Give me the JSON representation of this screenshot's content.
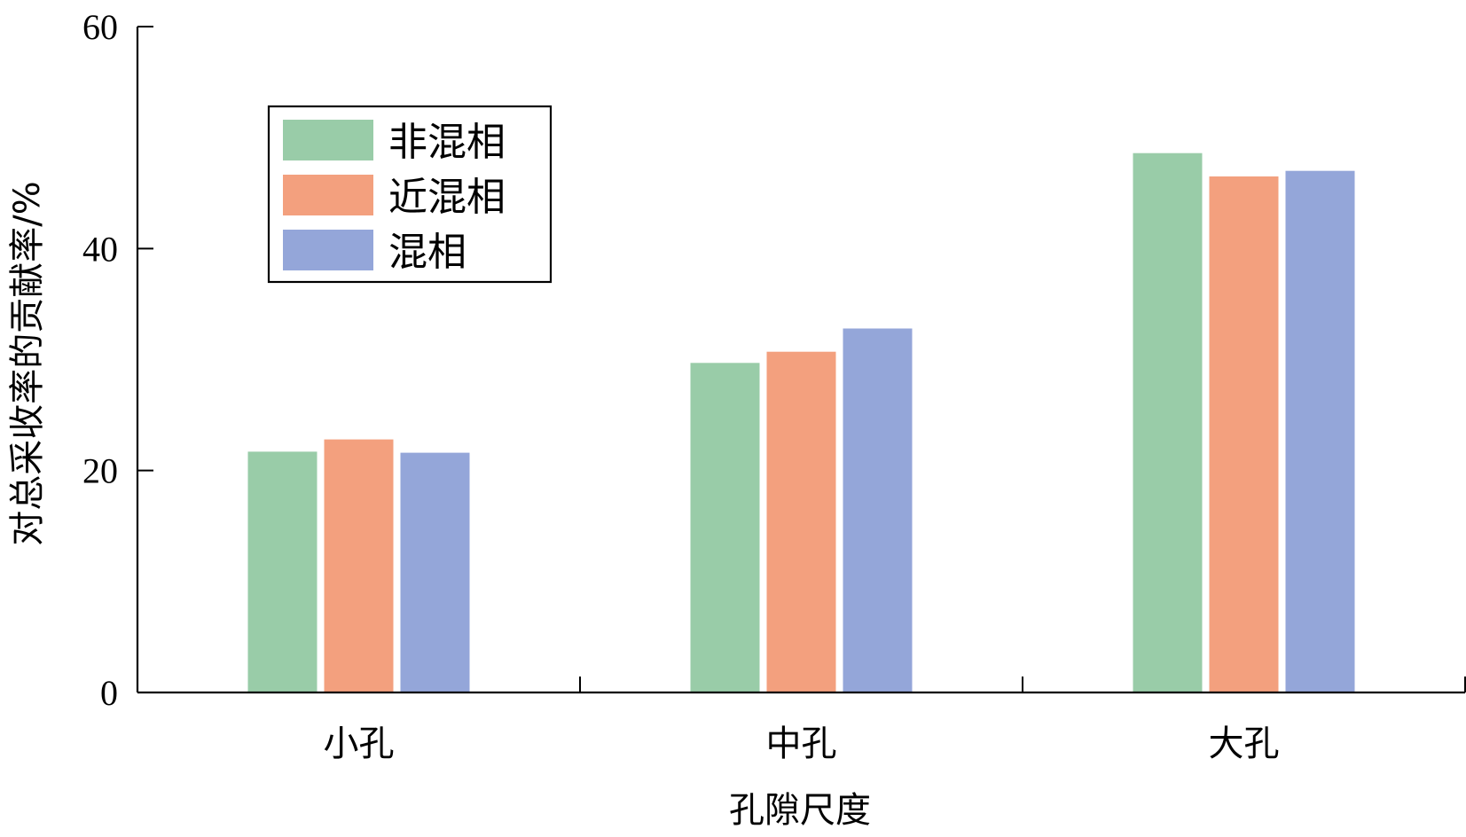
{
  "chart_data": {
    "type": "bar",
    "xlabel": "孔隙尺度",
    "ylabel": "对总采收率的贡献率/%",
    "categories": [
      "小孔",
      "中孔",
      "大孔"
    ],
    "series": [
      {
        "name": "非混相",
        "color": "#99cca8",
        "values": [
          21.7,
          29.7,
          48.6
        ]
      },
      {
        "name": "近混相",
        "color": "#f3a07e",
        "values": [
          22.8,
          30.7,
          46.5
        ]
      },
      {
        "name": "混相",
        "color": "#94a6d9",
        "values": [
          21.6,
          32.8,
          47.0
        ]
      }
    ],
    "ylim": [
      0,
      60
    ],
    "yticks": [
      0,
      20,
      40,
      60
    ],
    "grid": false,
    "legend_position": "top-left"
  }
}
